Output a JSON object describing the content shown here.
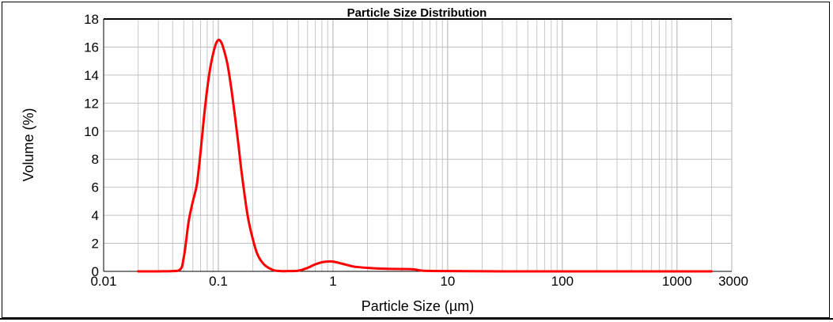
{
  "chart_data": {
    "type": "line",
    "title": "Particle Size Distribution",
    "xlabel": "Particle Size (µm)",
    "ylabel": "Volume (%)",
    "x_scale": "log",
    "xlim": [
      0.01,
      3000
    ],
    "ylim": [
      0,
      18
    ],
    "x_tick_labels": [
      "0.01",
      "0.1",
      "1",
      "10",
      "100",
      "1000",
      "3000"
    ],
    "x_tick_values": [
      0.01,
      0.1,
      1,
      10,
      100,
      1000,
      3000
    ],
    "y_tick_labels": [
      "0",
      "2",
      "4",
      "6",
      "8",
      "10",
      "12",
      "14",
      "16",
      "18"
    ],
    "y_tick_values": [
      0,
      2,
      4,
      6,
      8,
      10,
      12,
      14,
      16,
      18
    ],
    "grid": true,
    "legend": "none",
    "series": [
      {
        "color": "#ff0000",
        "x": [
          0.02,
          0.03,
          0.045,
          0.05,
          0.055,
          0.06,
          0.065,
          0.07,
          0.075,
          0.08,
          0.085,
          0.09,
          0.095,
          0.1,
          0.105,
          0.11,
          0.12,
          0.13,
          0.14,
          0.15,
          0.16,
          0.18,
          0.2,
          0.22,
          0.25,
          0.3,
          0.35,
          0.4,
          0.5,
          0.6,
          0.7,
          0.8,
          0.9,
          1,
          1.2,
          1.5,
          2,
          3,
          5,
          6,
          10,
          30,
          100,
          500,
          2000
        ],
        "y": [
          0,
          0,
          0.05,
          1.0,
          3.5,
          5.0,
          6.2,
          8.5,
          11.0,
          13.0,
          14.5,
          15.5,
          16.2,
          16.5,
          16.4,
          16.0,
          14.8,
          13.0,
          11.0,
          9.0,
          7.0,
          4.0,
          2.3,
          1.2,
          0.5,
          0.1,
          0.02,
          0.02,
          0.05,
          0.25,
          0.5,
          0.65,
          0.7,
          0.7,
          0.55,
          0.35,
          0.25,
          0.18,
          0.15,
          0.05,
          0.02,
          0,
          0,
          0,
          0
        ]
      }
    ]
  }
}
